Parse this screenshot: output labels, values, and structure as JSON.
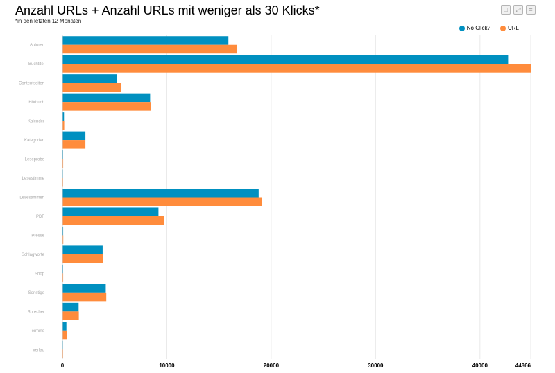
{
  "title": "Anzahl URLs + Anzahl URLs mit weniger als 30 Klicks*",
  "subtitle": "*in den letzten 12 Monaten",
  "toolbar": {
    "icons": [
      "square-icon",
      "expand-icon",
      "menu-icon"
    ]
  },
  "colors": {
    "no_click": "#0090c0",
    "url": "#ff8c3c",
    "grid": "#e9e9e9"
  },
  "chart_data": {
    "type": "bar",
    "orientation": "horizontal",
    "title": "Anzahl URLs + Anzahl URLs mit weniger als 30 Klicks*",
    "subtitle": "*in den letzten 12 Monaten",
    "categories": [
      "Autoren",
      "Buchtitel",
      "Contentseiten",
      "Hörbuch",
      "Kalender",
      "Kategorien",
      "Leseprobe",
      "Lesestimme",
      "Lesestimmen",
      "PDF",
      "Presse",
      "Schlagworte",
      "Shop",
      "Sonstige",
      "Sprecher",
      "Termine",
      "Verlag"
    ],
    "series": [
      {
        "name": "No Click?",
        "values": [
          15900,
          42700,
          5200,
          8400,
          150,
          2200,
          60,
          50,
          18800,
          9200,
          70,
          3850,
          60,
          4150,
          1550,
          380,
          50
        ]
      },
      {
        "name": "URL",
        "values": [
          16700,
          44866,
          5650,
          8450,
          170,
          2200,
          70,
          60,
          19100,
          9750,
          80,
          3870,
          70,
          4200,
          1570,
          400,
          60
        ]
      }
    ],
    "xlim": [
      0,
      44866
    ],
    "x_ticks": [
      "0",
      "10000",
      "20000",
      "30000",
      "40000",
      "44866"
    ],
    "x_tick_values": [
      0,
      10000,
      20000,
      30000,
      40000,
      44866
    ],
    "legend": "top-right",
    "grid": true
  }
}
